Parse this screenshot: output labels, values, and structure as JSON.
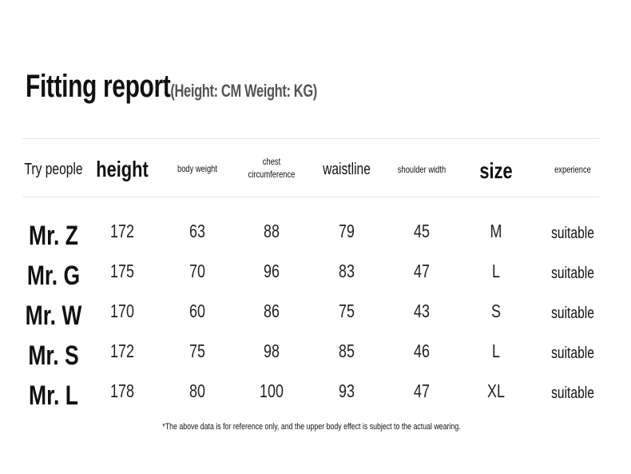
{
  "title": "Fitting report",
  "subtitle": "(Height: CM Weight: KG)",
  "table": {
    "headers": [
      "Try people",
      "height",
      "body weight",
      "chest circumference",
      "waistline",
      "shoulder width",
      "size",
      "experience"
    ],
    "rows": [
      [
        "Mr. Z",
        "172",
        "63",
        "88",
        "79",
        "45",
        "M",
        "suitable"
      ],
      [
        "Mr. G",
        "175",
        "70",
        "96",
        "83",
        "47",
        "L",
        "suitable"
      ],
      [
        "Mr. W",
        "170",
        "60",
        "86",
        "75",
        "43",
        "S",
        "suitable"
      ],
      [
        "Mr. S",
        "172",
        "75",
        "98",
        "85",
        "46",
        "L",
        "suitable"
      ],
      [
        "Mr. L",
        "178",
        "80",
        "100",
        "93",
        "47",
        "XL",
        "suitable"
      ]
    ]
  },
  "note": "*The above data is for reference only, and the upper body effect is subject to the actual wearing."
}
